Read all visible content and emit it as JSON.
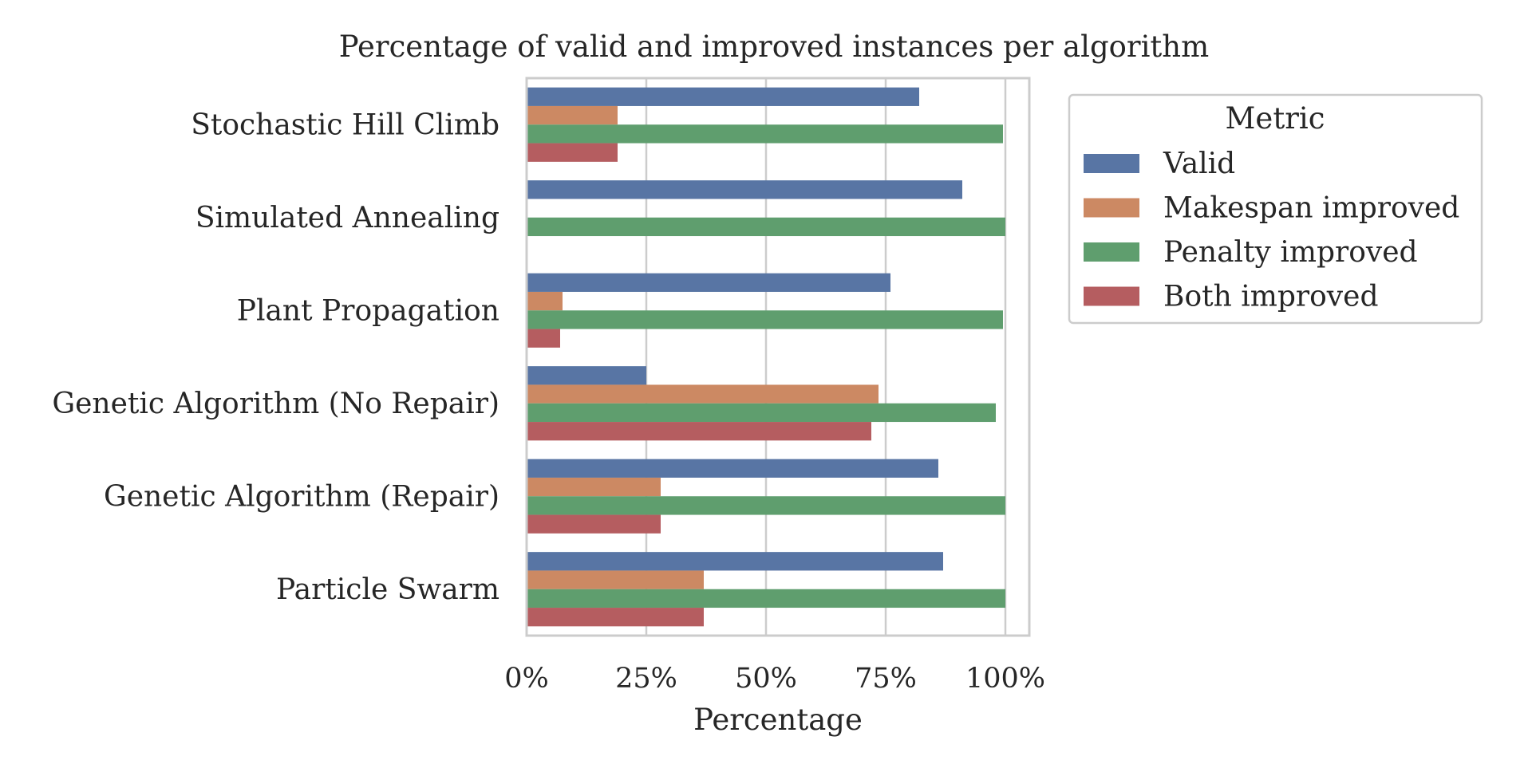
{
  "chart_data": {
    "type": "bar",
    "orientation": "horizontal",
    "title": "Percentage of valid and improved instances per algorithm",
    "xlabel": "Percentage",
    "ylabel": "",
    "xlim": [
      0,
      105
    ],
    "xticks": [
      0,
      25,
      50,
      75,
      100
    ],
    "xtick_labels": [
      "0%",
      "25%",
      "50%",
      "75%",
      "100%"
    ],
    "grid": "vertical",
    "categories": [
      "Stochastic Hill Climb",
      "Simulated Annealing",
      "Plant Propagation",
      "Genetic Algorithm (No Repair)",
      "Genetic Algorithm (Repair)",
      "Particle Swarm"
    ],
    "series": [
      {
        "name": "Valid",
        "color": "#5875a4",
        "values": [
          82,
          91,
          76,
          25,
          86,
          87
        ]
      },
      {
        "name": "Makespan improved",
        "color": "#cc8963",
        "values": [
          19,
          0,
          7.5,
          73.5,
          28,
          37
        ]
      },
      {
        "name": "Penalty improved",
        "color": "#5f9e6e",
        "values": [
          99.5,
          100,
          99.5,
          98,
          100,
          100
        ]
      },
      {
        "name": "Both improved",
        "color": "#b55d60",
        "values": [
          19,
          0,
          7,
          72,
          28,
          37
        ]
      }
    ],
    "legend": {
      "title": "Metric",
      "placement": "outside-right-top"
    }
  }
}
